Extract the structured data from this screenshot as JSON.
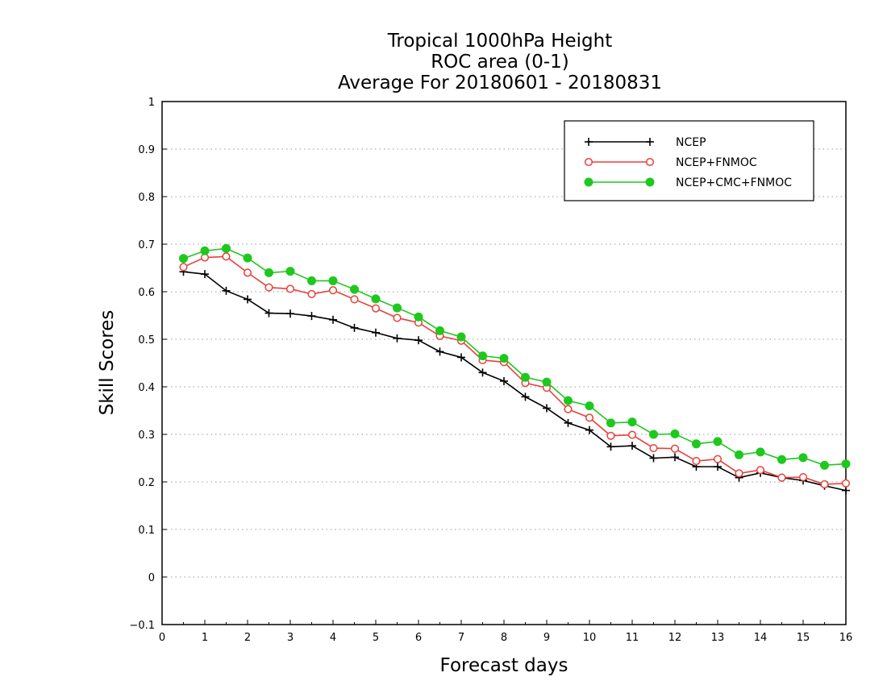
{
  "chart_data": {
    "type": "line",
    "title": [
      "Tropical 1000hPa Height",
      "ROC area (0-1)",
      "Average For 20180601 - 20180831"
    ],
    "xlabel": "Forecast days",
    "ylabel": "Skill Scores",
    "xlim": [
      0,
      16
    ],
    "ylim": [
      -0.1,
      1
    ],
    "xticks": [
      "0",
      "1",
      "2",
      "3",
      "4",
      "5",
      "6",
      "7",
      "8",
      "9",
      "10",
      "11",
      "12",
      "13",
      "14",
      "15",
      "16"
    ],
    "yticks": [
      "−0.1",
      "0",
      "0.1",
      "0.2",
      "0.3",
      "0.4",
      "0.5",
      "0.6",
      "0.7",
      "0.8",
      "0.9",
      "1"
    ],
    "grid": "horizontal-dotted",
    "legend_position": "top-right",
    "x": [
      0.5,
      1,
      1.5,
      2,
      2.5,
      3,
      3.5,
      4,
      4.5,
      5,
      5.5,
      6,
      6.5,
      7,
      7.5,
      8,
      8.5,
      9,
      9.5,
      10,
      10.5,
      11,
      11.5,
      12,
      12.5,
      13,
      13.5,
      14,
      14.5,
      15,
      15.5,
      16
    ],
    "series": [
      {
        "name": "NCEP",
        "color": "#000000",
        "marker": "plus",
        "values": [
          0.642,
          0.637,
          0.602,
          0.584,
          0.555,
          0.554,
          0.549,
          0.541,
          0.524,
          0.514,
          0.502,
          0.498,
          0.474,
          0.462,
          0.43,
          0.412,
          0.379,
          0.355,
          0.324,
          0.309,
          0.274,
          0.276,
          0.25,
          0.252,
          0.232,
          0.232,
          0.209,
          0.219,
          0.209,
          0.203,
          0.192,
          0.182
        ]
      },
      {
        "name": "NCEP+FNMOC",
        "color": "#e8403a",
        "marker": "open-circle",
        "values": [
          0.652,
          0.672,
          0.674,
          0.64,
          0.609,
          0.606,
          0.595,
          0.603,
          0.584,
          0.565,
          0.545,
          0.535,
          0.507,
          0.497,
          0.456,
          0.452,
          0.408,
          0.398,
          0.353,
          0.335,
          0.297,
          0.299,
          0.271,
          0.27,
          0.244,
          0.248,
          0.218,
          0.225,
          0.209,
          0.21,
          0.195,
          0.197
        ]
      },
      {
        "name": "NCEP+CMC+FNMOC",
        "color": "#1ec81e",
        "marker": "filled-circle",
        "values": [
          0.67,
          0.686,
          0.691,
          0.671,
          0.64,
          0.643,
          0.623,
          0.623,
          0.605,
          0.585,
          0.566,
          0.547,
          0.518,
          0.505,
          0.465,
          0.46,
          0.42,
          0.41,
          0.371,
          0.36,
          0.324,
          0.326,
          0.3,
          0.301,
          0.28,
          0.285,
          0.257,
          0.263,
          0.247,
          0.251,
          0.235,
          0.238
        ]
      }
    ]
  }
}
